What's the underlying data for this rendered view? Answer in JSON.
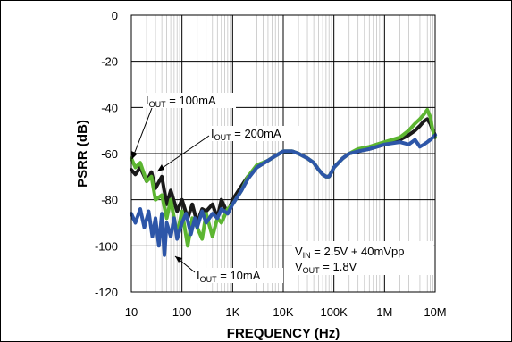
{
  "chart_data": {
    "type": "line",
    "title": "",
    "xlabel": "FREQUENCY (Hz)",
    "ylabel": "PSRR (dB)",
    "xscale": "log",
    "xlim": [
      10,
      10000000
    ],
    "ylim": [
      -120,
      0
    ],
    "grid": true,
    "x_ticks": [
      10,
      100,
      1000,
      10000,
      100000,
      1000000,
      10000000
    ],
    "x_tick_labels": [
      "10",
      "100",
      "1K",
      "10K",
      "100K",
      "1M",
      "10M"
    ],
    "y_ticks": [
      0,
      -20,
      -40,
      -60,
      -80,
      -100,
      -120
    ],
    "y_tick_labels": [
      "0",
      "-20",
      "-40",
      "-60",
      "-80",
      "-100",
      "-120"
    ],
    "series": [
      {
        "name": "IOUT = 100mA",
        "color": "#1a1a1a",
        "x": [
          10,
          12,
          15,
          20,
          25,
          30,
          40,
          50,
          60,
          80,
          100,
          130,
          160,
          200,
          250,
          300,
          400,
          500,
          600,
          800,
          1000,
          1500,
          2000,
          3000,
          5000,
          7000,
          10000,
          15000,
          20000,
          30000,
          40000,
          50000,
          60000,
          70000,
          80000,
          90000,
          100000,
          150000,
          200000,
          300000,
          500000,
          700000,
          1000000,
          2000000,
          3000000,
          4000000,
          5000000,
          6000000,
          7000000,
          8000000,
          9000000,
          10000000
        ],
        "y": [
          -67,
          -69,
          -66,
          -72,
          -68,
          -75,
          -70,
          -82,
          -76,
          -85,
          -80,
          -88,
          -82,
          -90,
          -84,
          -85,
          -82,
          -88,
          -80,
          -86,
          -80,
          -74,
          -70,
          -66,
          -63,
          -61,
          -59,
          -59,
          -60,
          -62,
          -64,
          -67,
          -69,
          -70,
          -70,
          -68,
          -66,
          -62,
          -60,
          -59,
          -58,
          -57,
          -56,
          -54,
          -52,
          -50,
          -48,
          -46,
          -45,
          -47,
          -50,
          -52
        ]
      },
      {
        "name": "IOUT = 200mA",
        "color": "#5cb531",
        "x": [
          10,
          12,
          15,
          20,
          25,
          30,
          40,
          50,
          60,
          80,
          100,
          130,
          160,
          200,
          250,
          300,
          400,
          500,
          600,
          800,
          1000,
          1500,
          2000,
          3000,
          5000,
          7000,
          10000,
          15000,
          20000,
          30000,
          40000,
          50000,
          60000,
          70000,
          80000,
          90000,
          100000,
          150000,
          200000,
          300000,
          500000,
          700000,
          1000000,
          2000000,
          3000000,
          4000000,
          5000000,
          6000000,
          7000000,
          8000000,
          9000000,
          10000000
        ],
        "y": [
          -62,
          -66,
          -64,
          -72,
          -70,
          -80,
          -78,
          -88,
          -80,
          -95,
          -85,
          -100,
          -88,
          -92,
          -97,
          -86,
          -96,
          -88,
          -90,
          -84,
          -82,
          -76,
          -70,
          -65,
          -63,
          -61,
          -59,
          -59,
          -60,
          -62,
          -64,
          -67,
          -69,
          -70,
          -70,
          -68,
          -66,
          -62,
          -60,
          -58,
          -57,
          -56,
          -55,
          -53,
          -50,
          -47,
          -45,
          -43,
          -41,
          -44,
          -50,
          -53
        ]
      },
      {
        "name": "IOUT = 10mA",
        "color": "#2d56a8",
        "x": [
          10,
          12,
          15,
          18,
          22,
          26,
          30,
          35,
          40,
          45,
          50,
          60,
          70,
          80,
          100,
          120,
          150,
          180,
          200,
          250,
          300,
          400,
          500,
          600,
          800,
          1000,
          1500,
          2000,
          3000,
          5000,
          7000,
          10000,
          15000,
          20000,
          30000,
          40000,
          50000,
          60000,
          70000,
          80000,
          90000,
          100000,
          150000,
          200000,
          300000,
          500000,
          700000,
          1000000,
          2000000,
          3000000,
          4000000,
          5000000,
          6000000,
          7000000,
          8000000,
          9000000,
          10000000
        ],
        "y": [
          -86,
          -90,
          -84,
          -92,
          -85,
          -96,
          -88,
          -100,
          -86,
          -104,
          -90,
          -96,
          -88,
          -97,
          -90,
          -86,
          -95,
          -88,
          -92,
          -85,
          -90,
          -86,
          -88,
          -84,
          -86,
          -82,
          -76,
          -71,
          -66,
          -63,
          -61,
          -59,
          -59,
          -60,
          -62,
          -64,
          -67,
          -69,
          -70,
          -70,
          -68,
          -66,
          -62,
          -60,
          -59,
          -58,
          -57,
          -56,
          -55,
          -56,
          -54,
          -57,
          -56,
          -55,
          -54,
          -53,
          -52
        ]
      }
    ],
    "annotations": [
      {
        "main": "I",
        "sub": "OUT",
        "rest": " = 100mA"
      },
      {
        "main": "I",
        "sub": "OUT",
        "rest": " = 200mA"
      },
      {
        "main": "I",
        "sub": "OUT",
        "rest": " = 10mA"
      },
      {
        "main": "V",
        "sub": "IN",
        "rest": " = 2.5V + 40mVpp"
      },
      {
        "main": "V",
        "sub": "OUT",
        "rest": " = 1.8V"
      }
    ]
  }
}
